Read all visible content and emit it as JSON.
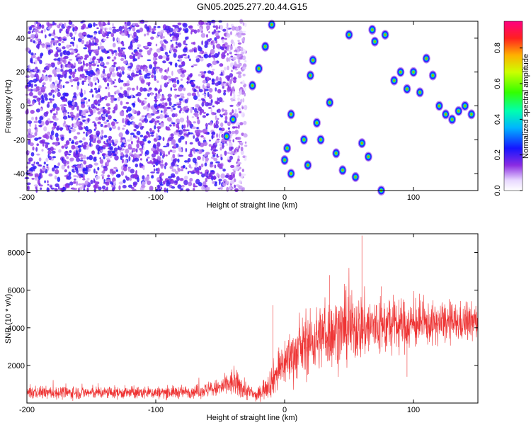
{
  "title": "GN05.2025.277.20.44.G15",
  "chart_data": [
    {
      "type": "heatmap",
      "xlabel": "Height of straight line (km)",
      "ylabel": "Frequency (Hz)",
      "xlim": [
        -200,
        150
      ],
      "ylim": [
        -50,
        50
      ],
      "xticks": [
        -200,
        -100,
        0,
        100
      ],
      "yticks": [
        -40,
        -20,
        0,
        20,
        40
      ],
      "colorbar": {
        "label": "Normalized spectral amplitude",
        "range": [
          0,
          0.95
        ],
        "ticks": [
          0,
          0.2,
          0.4,
          0.6,
          0.8
        ]
      },
      "description_of_pattern": {
        "noise_region_x": [
          -200,
          -30
        ],
        "signal_clusters": [
          {
            "x": -45,
            "y": -18
          },
          {
            "x": -40,
            "y": -8
          },
          {
            "x": -25,
            "y": 12
          },
          {
            "x": -20,
            "y": 22
          },
          {
            "x": -15,
            "y": 35
          },
          {
            "x": -10,
            "y": 48
          },
          {
            "x": 5,
            "y": -40
          },
          {
            "x": 0,
            "y": -32
          },
          {
            "x": 2,
            "y": -25
          },
          {
            "x": 5,
            "y": -5
          },
          {
            "x": 15,
            "y": -20
          },
          {
            "x": 18,
            "y": -35
          },
          {
            "x": 20,
            "y": 18
          },
          {
            "x": 22,
            "y": 27
          },
          {
            "x": 25,
            "y": -10
          },
          {
            "x": 28,
            "y": -20
          },
          {
            "x": 35,
            "y": 2
          },
          {
            "x": 40,
            "y": -28
          },
          {
            "x": 45,
            "y": -38
          },
          {
            "x": 50,
            "y": 42
          },
          {
            "x": 55,
            "y": -42
          },
          {
            "x": 60,
            "y": -22
          },
          {
            "x": 65,
            "y": -30
          },
          {
            "x": 68,
            "y": 45
          },
          {
            "x": 70,
            "y": 38
          },
          {
            "x": 75,
            "y": -50
          },
          {
            "x": 78,
            "y": 42
          },
          {
            "x": 85,
            "y": 15
          },
          {
            "x": 90,
            "y": 20
          },
          {
            "x": 95,
            "y": 10
          },
          {
            "x": 100,
            "y": 20
          },
          {
            "x": 105,
            "y": 8
          },
          {
            "x": 110,
            "y": 28
          },
          {
            "x": 115,
            "y": 18
          },
          {
            "x": 120,
            "y": 0
          },
          {
            "x": 125,
            "y": -5
          },
          {
            "x": 130,
            "y": -8
          },
          {
            "x": 135,
            "y": -3
          },
          {
            "x": 140,
            "y": 0
          },
          {
            "x": 145,
            "y": -5
          }
        ]
      }
    },
    {
      "type": "line",
      "xlabel": "Height of straight line (km)",
      "ylabel": "SNR (10 * v/v)",
      "xlim": [
        -200,
        150
      ],
      "ylim": [
        0,
        9000
      ],
      "xticks": [
        -200,
        -100,
        0,
        100
      ],
      "yticks": [
        2000,
        4000,
        6000,
        8000
      ],
      "series_color": "#ee3333",
      "envelope": [
        {
          "x": -200,
          "mean": 550,
          "spread": 300
        },
        {
          "x": -150,
          "mean": 550,
          "spread": 300
        },
        {
          "x": -100,
          "mean": 550,
          "spread": 300
        },
        {
          "x": -70,
          "mean": 600,
          "spread": 300
        },
        {
          "x": -50,
          "mean": 800,
          "spread": 450
        },
        {
          "x": -40,
          "mean": 1100,
          "spread": 700
        },
        {
          "x": -30,
          "mean": 700,
          "spread": 500
        },
        {
          "x": -22,
          "mean": 350,
          "spread": 250
        },
        {
          "x": -10,
          "mean": 1200,
          "spread": 800
        },
        {
          "x": 0,
          "mean": 2200,
          "spread": 1200
        },
        {
          "x": 15,
          "mean": 3000,
          "spread": 1400
        },
        {
          "x": 30,
          "mean": 3600,
          "spread": 1600
        },
        {
          "x": 50,
          "mean": 4000,
          "spread": 1700
        },
        {
          "x": 80,
          "mean": 4100,
          "spread": 1400
        },
        {
          "x": 110,
          "mean": 4200,
          "spread": 1000
        },
        {
          "x": 150,
          "mean": 4300,
          "spread": 900
        }
      ],
      "spikes": [
        {
          "x": -9,
          "y": 5200
        },
        {
          "x": 35,
          "y": 6800
        },
        {
          "x": 60,
          "y": 8900
        },
        {
          "x": 75,
          "y": 6200
        },
        {
          "x": 95,
          "y": 1400
        }
      ]
    }
  ]
}
